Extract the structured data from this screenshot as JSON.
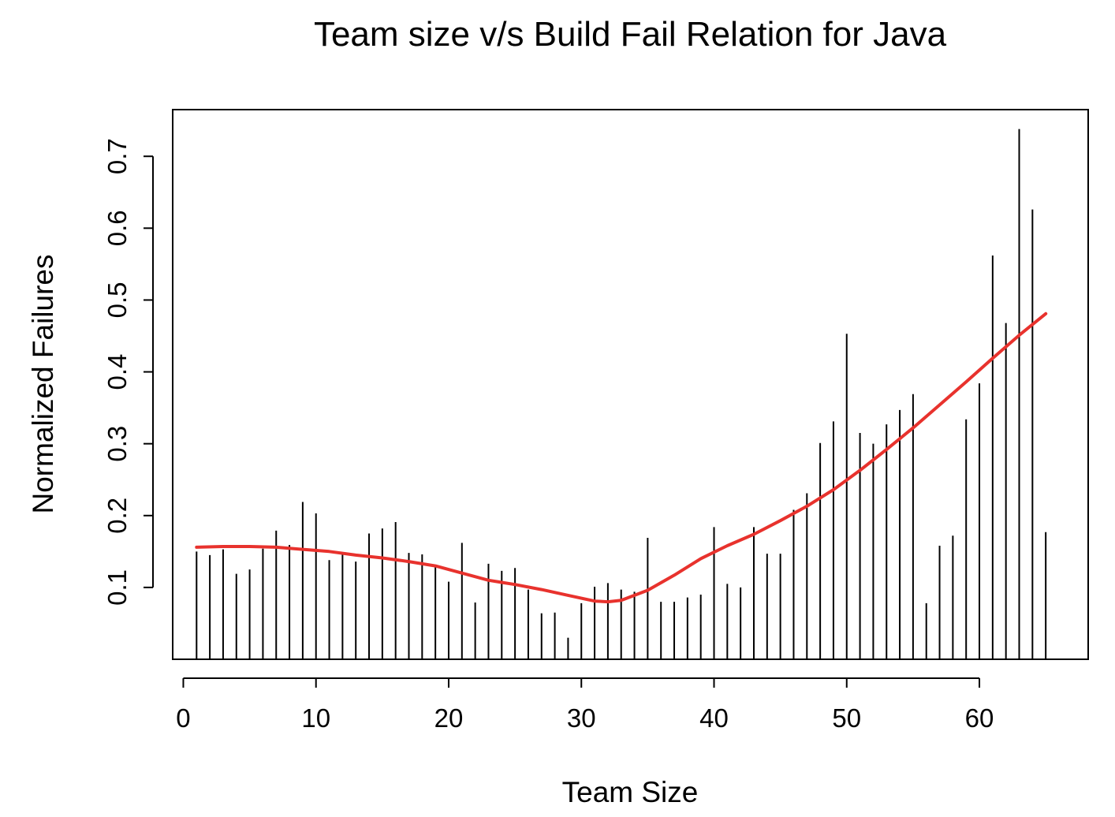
{
  "chart_data": {
    "type": "bar",
    "title": "Team size v/s Build Fail Relation for Java",
    "xlabel": "Team Size",
    "ylabel": "Normalized Failures",
    "xlim": [
      -0.8,
      68.2
    ],
    "ylim": [
      0.0,
      0.765
    ],
    "x_ticks": [
      0,
      10,
      20,
      30,
      40,
      50,
      60
    ],
    "y_ticks": [
      0.1,
      0.2,
      0.3,
      0.4,
      0.5,
      0.6,
      0.7
    ],
    "x_tick_labels": [
      "0",
      "10",
      "20",
      "30",
      "40",
      "50",
      "60"
    ],
    "y_tick_labels": [
      "0.1",
      "0.2",
      "0.3",
      "0.4",
      "0.5",
      "0.6",
      "0.7"
    ],
    "grid": false,
    "legend": "none",
    "x": [
      1,
      2,
      3,
      4,
      5,
      6,
      7,
      8,
      9,
      10,
      11,
      12,
      13,
      14,
      15,
      16,
      17,
      18,
      19,
      20,
      21,
      22,
      23,
      24,
      25,
      26,
      27,
      28,
      29,
      30,
      31,
      32,
      33,
      34,
      35,
      36,
      37,
      38,
      39,
      40,
      41,
      42,
      43,
      44,
      45,
      46,
      47,
      48,
      49,
      50,
      51,
      52,
      53,
      54,
      55,
      56,
      57,
      58,
      59,
      60,
      61,
      62,
      63,
      64,
      65
    ],
    "values": [
      0.15,
      0.145,
      0.153,
      0.119,
      0.125,
      0.154,
      0.179,
      0.159,
      0.219,
      0.203,
      0.138,
      0.146,
      0.136,
      0.175,
      0.182,
      0.191,
      0.148,
      0.146,
      0.13,
      0.108,
      0.162,
      0.079,
      0.133,
      0.123,
      0.127,
      0.097,
      0.064,
      0.065,
      0.03,
      0.078,
      0.101,
      0.106,
      0.097,
      0.094,
      0.169,
      0.08,
      0.08,
      0.086,
      0.09,
      0.184,
      0.105,
      0.1,
      0.184,
      0.147,
      0.147,
      0.208,
      0.231,
      0.301,
      0.331,
      0.453,
      0.315,
      0.3,
      0.327,
      0.347,
      0.369,
      0.078,
      0.158,
      0.172,
      0.334,
      0.384,
      0.562,
      0.468,
      0.738,
      0.626,
      0.177
    ],
    "series": [
      {
        "type": "line",
        "color": "#e8322d",
        "x": [
          1,
          3,
          5,
          7,
          9,
          11,
          13,
          15,
          17,
          19,
          21,
          23,
          25,
          27,
          29,
          31,
          32,
          33,
          35,
          37,
          39,
          41,
          43,
          45,
          47,
          49,
          51,
          53,
          55,
          57,
          59,
          61,
          63,
          65
        ],
        "values": [
          0.156,
          0.157,
          0.157,
          0.156,
          0.153,
          0.15,
          0.145,
          0.141,
          0.136,
          0.13,
          0.12,
          0.11,
          0.104,
          0.097,
          0.089,
          0.081,
          0.08,
          0.082,
          0.096,
          0.117,
          0.14,
          0.158,
          0.174,
          0.193,
          0.213,
          0.236,
          0.263,
          0.292,
          0.322,
          0.354,
          0.386,
          0.419,
          0.451,
          0.481
        ]
      }
    ],
    "colors": {
      "bars": "#000000",
      "smooth_line": "#e8322d",
      "axes": "#000000"
    }
  }
}
